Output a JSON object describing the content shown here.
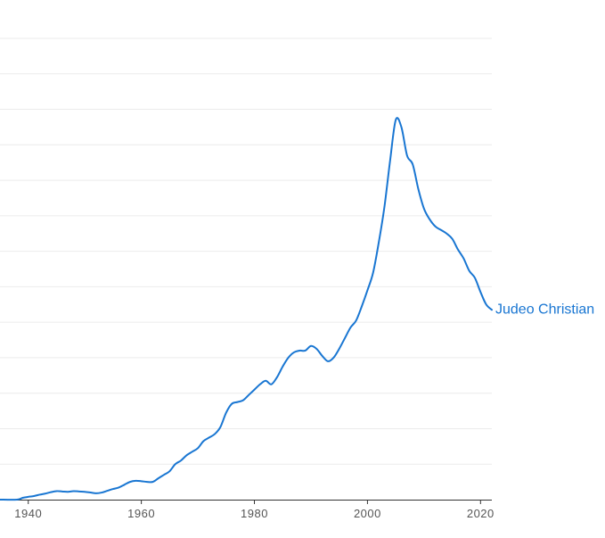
{
  "chart_data": {
    "type": "line",
    "title": "",
    "xlabel": "",
    "ylabel": "",
    "xlim": [
      1935,
      2022
    ],
    "ylim": [
      0,
      13
    ],
    "grid": true,
    "x_ticks": [
      "1940",
      "1960",
      "1980",
      "2000",
      "2020"
    ],
    "series": [
      {
        "name": "Judeo Christian",
        "color": "#1976d2",
        "x": [
          1935,
          1938,
          1939,
          1940,
          1941,
          1942,
          1943,
          1944,
          1945,
          1946,
          1947,
          1948,
          1949,
          1950,
          1951,
          1952,
          1953,
          1954,
          1955,
          1956,
          1957,
          1958,
          1959,
          1960,
          1961,
          1962,
          1963,
          1964,
          1965,
          1966,
          1967,
          1968,
          1969,
          1970,
          1971,
          1972,
          1973,
          1974,
          1975,
          1976,
          1977,
          1978,
          1979,
          1980,
          1981,
          1982,
          1983,
          1984,
          1985,
          1986,
          1987,
          1988,
          1989,
          1990,
          1991,
          1992,
          1993,
          1994,
          1995,
          1996,
          1997,
          1998,
          1999,
          2000,
          2001,
          2002,
          2003,
          2004,
          2005,
          2006,
          2007,
          2008,
          2009,
          2010,
          2011,
          2012,
          2013,
          2014,
          2015,
          2016,
          2017,
          2018,
          2019,
          2020,
          2021,
          2022
        ],
        "values": [
          0,
          0,
          0.05,
          0.08,
          0.1,
          0.14,
          0.17,
          0.21,
          0.24,
          0.23,
          0.22,
          0.24,
          0.23,
          0.22,
          0.2,
          0.18,
          0.2,
          0.25,
          0.3,
          0.34,
          0.42,
          0.5,
          0.53,
          0.52,
          0.5,
          0.5,
          0.6,
          0.7,
          0.8,
          1.0,
          1.1,
          1.25,
          1.35,
          1.45,
          1.65,
          1.75,
          1.85,
          2.05,
          2.45,
          2.7,
          2.75,
          2.8,
          2.95,
          3.1,
          3.25,
          3.35,
          3.25,
          3.45,
          3.75,
          4.0,
          4.15,
          4.2,
          4.2,
          4.33,
          4.25,
          4.05,
          3.9,
          4.0,
          4.25,
          4.55,
          4.85,
          5.05,
          5.45,
          5.9,
          6.4,
          7.25,
          8.25,
          9.55,
          10.7,
          10.5,
          9.7,
          9.45,
          8.75,
          8.2,
          7.9,
          7.7,
          7.6,
          7.5,
          7.35,
          7.05,
          6.8,
          6.45,
          6.25,
          5.85,
          5.5,
          5.35
        ]
      }
    ]
  }
}
